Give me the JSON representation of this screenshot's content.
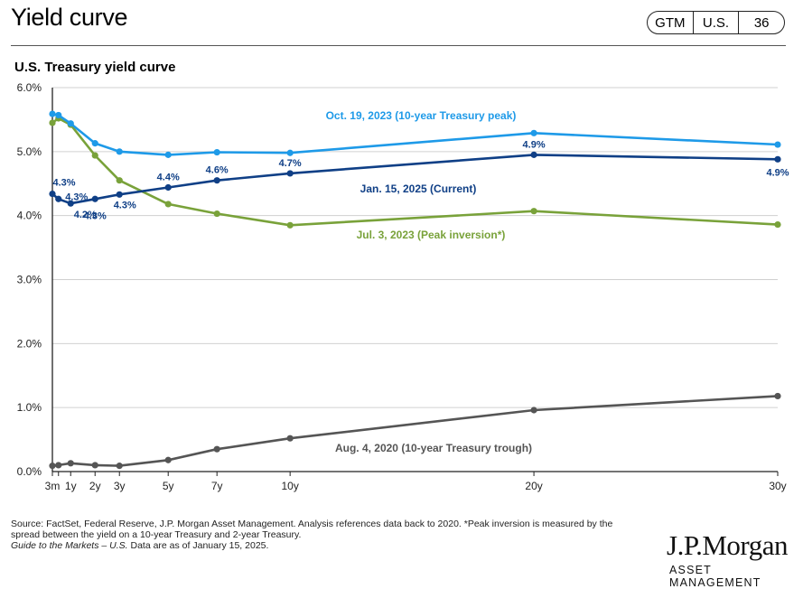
{
  "header": {
    "title": "Yield curve",
    "tags": [
      "GTM",
      "U.S.",
      "36"
    ]
  },
  "chart_data": {
    "type": "line",
    "title": "U.S. Treasury yield curve",
    "x_positions": [
      0.25,
      0.5,
      1,
      2,
      3,
      5,
      7,
      10,
      20,
      30
    ],
    "x_tick_labels": [
      "3m",
      "",
      "1y",
      "2y",
      "3y",
      "5y",
      "7y",
      "10y",
      "20y",
      "30y"
    ],
    "ylim": [
      0,
      6
    ],
    "y_ticks": [
      0,
      1,
      2,
      3,
      4,
      5,
      6
    ],
    "y_tick_labels": [
      "0.0%",
      "1.0%",
      "2.0%",
      "3.0%",
      "4.0%",
      "5.0%",
      "6.0%"
    ],
    "grid": true,
    "series": [
      {
        "name": "Oct. 19, 2023 (10-year Treasury peak)",
        "color": "#1e9ae8",
        "values": [
          5.59,
          5.57,
          5.44,
          5.13,
          5.0,
          4.95,
          4.99,
          4.98,
          5.29,
          5.11
        ]
      },
      {
        "name": "Jan. 15, 2025 (Current)",
        "color": "#0f3f86",
        "values": [
          4.34,
          4.26,
          4.19,
          4.26,
          4.33,
          4.44,
          4.55,
          4.66,
          4.95,
          4.88
        ],
        "data_labels": [
          {
            "i": 0,
            "text": "4.3%"
          },
          {
            "i": 1,
            "text": "4.3%"
          },
          {
            "i": 2,
            "text": "4.2%"
          },
          {
            "i": 3,
            "text": "4.3%"
          },
          {
            "i": 4,
            "text": "4.3%"
          },
          {
            "i": 5,
            "text": "4.4%"
          },
          {
            "i": 6,
            "text": "4.6%"
          },
          {
            "i": 7,
            "text": "4.7%"
          },
          {
            "i": 8,
            "text": "4.9%"
          },
          {
            "i": 9,
            "text": "4.9%"
          }
        ]
      },
      {
        "name": "Jul. 3, 2023 (Peak inversion*)",
        "color": "#79a23a",
        "values": [
          5.45,
          5.52,
          5.42,
          4.94,
          4.55,
          4.18,
          4.03,
          3.85,
          4.07,
          3.86
        ]
      },
      {
        "name": "Aug. 4, 2020 (10-year Treasury trough)",
        "color": "#555555",
        "values": [
          0.09,
          0.1,
          0.13,
          0.1,
          0.09,
          0.18,
          0.35,
          0.52,
          0.96,
          1.18
        ]
      }
    ]
  },
  "footnote": {
    "line1": "Source: FactSet, Federal Reserve, J.P. Morgan Asset Management. Analysis references data back to 2020. *Peak inversion is measured by the",
    "line2": "spread between the yield on a 10-year Treasury and 2-year Treasury.",
    "line3_italic": "Guide to the Markets – U.S.",
    "line3_rest": " Data are as of January 15, 2025."
  },
  "logo": {
    "name": "J.P.Morgan",
    "sub": "ASSET MANAGEMENT"
  }
}
